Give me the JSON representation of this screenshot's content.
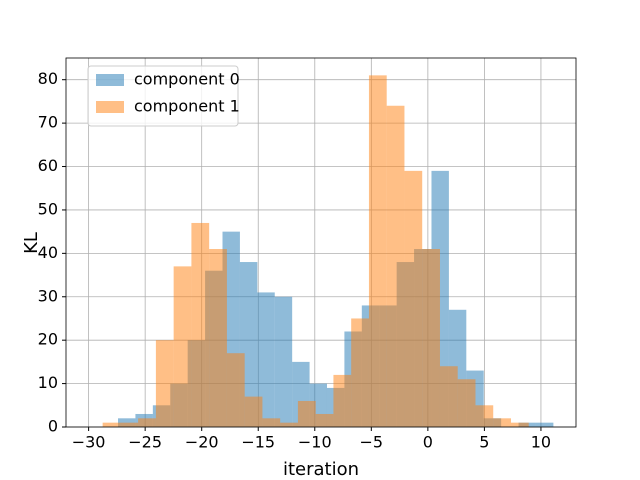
{
  "chart_data": {
    "type": "histogram",
    "xlabel": "iteration",
    "ylabel": "KL",
    "xlim": [
      -32.0,
      13.1
    ],
    "ylim": [
      0,
      85
    ],
    "xticks": [
      {
        "value": -30,
        "label": "−30"
      },
      {
        "value": -25,
        "label": "−25"
      },
      {
        "value": -20,
        "label": "−20"
      },
      {
        "value": -15,
        "label": "−15"
      },
      {
        "value": -10,
        "label": "−10"
      },
      {
        "value": -5,
        "label": "−5"
      },
      0,
      5,
      10
    ],
    "yticks": [
      0,
      10,
      20,
      30,
      40,
      50,
      60,
      70,
      80
    ],
    "grid": true,
    "legend": "upper left",
    "opacity": 0.5,
    "series": [
      {
        "name": "component 0",
        "color": "#1f77b4",
        "bins": [
          -27.4,
          -25.86,
          -24.32,
          -22.78,
          -21.24,
          -19.7,
          -18.16,
          -16.62,
          -15.08,
          -13.54,
          -12.0,
          -10.46,
          -8.92,
          -7.38,
          -5.84,
          -4.3,
          -2.76,
          -1.22,
          0.32,
          1.86,
          3.4,
          4.94,
          6.48,
          8.02,
          9.56,
          11.1
        ],
        "values": [
          2,
          3,
          5,
          10,
          20,
          36,
          45,
          38,
          31,
          30,
          15,
          10,
          9,
          22,
          28,
          28,
          38,
          41,
          59,
          27,
          13,
          2,
          0,
          1,
          1
        ]
      },
      {
        "name": "component 1",
        "color": "#ff7f0e",
        "bins": [
          -28.76,
          -27.19,
          -25.62,
          -24.05,
          -22.48,
          -20.91,
          -19.34,
          -17.77,
          -16.2,
          -14.63,
          -13.06,
          -11.49,
          -9.92,
          -8.35,
          -6.78,
          -5.21,
          -3.64,
          -2.07,
          -0.5,
          1.07,
          2.64,
          4.21,
          5.78,
          7.35,
          8.92,
          10.49
        ],
        "values": [
          1,
          1,
          2,
          20,
          37,
          47,
          41,
          17,
          7,
          2,
          1,
          6,
          3,
          12,
          25,
          81,
          74,
          59,
          41,
          14,
          11,
          5,
          2,
          1,
          0
        ]
      }
    ]
  }
}
